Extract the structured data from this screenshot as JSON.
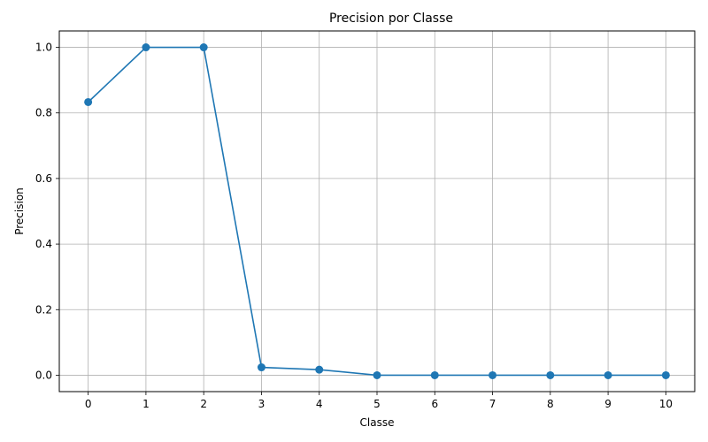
{
  "chart_data": {
    "type": "line",
    "title": "Precision por Classe",
    "xlabel": "Classe",
    "ylabel": "Precision",
    "x": [
      0,
      1,
      2,
      3,
      4,
      5,
      6,
      7,
      8,
      9,
      10
    ],
    "xticks": [
      "0",
      "1",
      "2",
      "3",
      "4",
      "5",
      "6",
      "7",
      "8",
      "9",
      "10"
    ],
    "yticks": [
      0.0,
      0.2,
      0.4,
      0.6,
      0.8,
      1.0
    ],
    "ytick_labels": [
      "0.0",
      "0.2",
      "0.4",
      "0.6",
      "0.8",
      "1.0"
    ],
    "xlim": [
      -0.5,
      10.5
    ],
    "ylim": [
      -0.05,
      1.05
    ],
    "grid": true,
    "series": [
      {
        "values": [
          0.833,
          1.0,
          1.0,
          0.024,
          0.017,
          0.0,
          0.0,
          0.0,
          0.0,
          0.0,
          0.0
        ],
        "color": "#1f77b4",
        "marker": "circle"
      }
    ]
  }
}
